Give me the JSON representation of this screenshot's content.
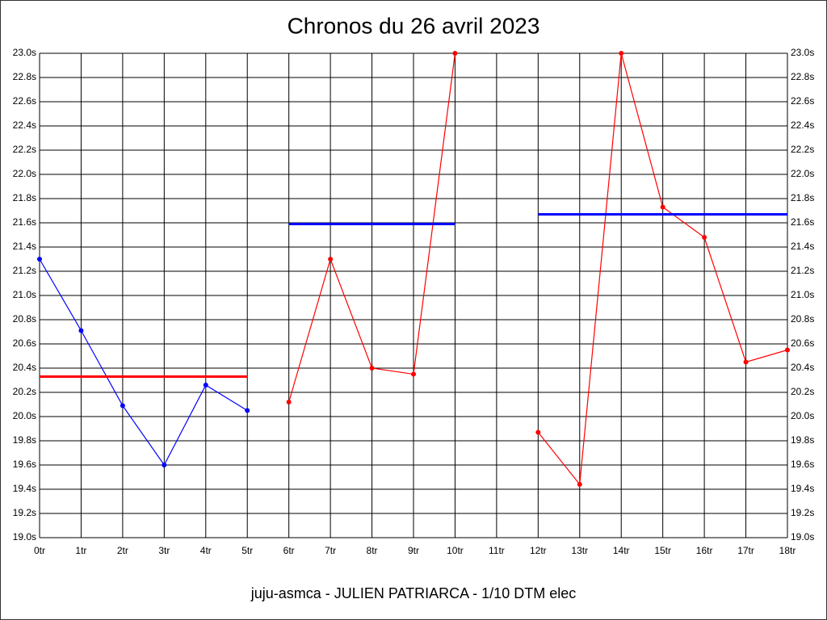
{
  "chart_data": {
    "type": "line",
    "title": "Chronos du 26 avril 2023",
    "subtitle": "juju-asmca - JULIEN PATRIARCA - 1/10 DTM elec",
    "categories": [
      "0tr",
      "1tr",
      "2tr",
      "3tr",
      "4tr",
      "5tr",
      "6tr",
      "7tr",
      "8tr",
      "9tr",
      "10tr",
      "11tr",
      "12tr",
      "13tr",
      "14tr",
      "15tr",
      "16tr",
      "17tr",
      "18tr"
    ],
    "series": [
      {
        "color": "#0000ff",
        "markers": true,
        "line_width": 1.2,
        "values": [
          21.3,
          20.71,
          20.09,
          19.6,
          20.26,
          20.05,
          null,
          null,
          null,
          null,
          null,
          null,
          null,
          null,
          null,
          null,
          null,
          null,
          null
        ]
      },
      {
        "color": "#ff0000",
        "markers": true,
        "line_width": 1.2,
        "values": [
          null,
          null,
          null,
          null,
          null,
          null,
          20.12,
          21.3,
          20.4,
          20.35,
          23.0,
          null,
          19.87,
          19.44,
          23.0,
          21.73,
          21.48,
          20.45,
          20.55
        ]
      },
      {
        "color": "#ff0000",
        "markers": false,
        "line_width": 3,
        "values": [
          20.33,
          20.33,
          20.33,
          20.33,
          20.33,
          20.33,
          null,
          null,
          null,
          null,
          null,
          null,
          null,
          null,
          null,
          null,
          null,
          null,
          null
        ]
      },
      {
        "color": "#0000ff",
        "markers": false,
        "line_width": 3,
        "values": [
          null,
          null,
          null,
          null,
          null,
          null,
          21.59,
          21.59,
          21.59,
          21.59,
          21.59,
          null,
          21.67,
          21.67,
          21.67,
          21.67,
          21.67,
          21.67,
          21.67
        ]
      }
    ],
    "ylim": [
      19.0,
      23.0
    ],
    "yticks": [
      {
        "value": 19.0,
        "label": "19.0s"
      },
      {
        "value": 19.2,
        "label": "19.2s"
      },
      {
        "value": 19.4,
        "label": "19.4s"
      },
      {
        "value": 19.6,
        "label": "19.6s"
      },
      {
        "value": 19.8,
        "label": "19.8s"
      },
      {
        "value": 20.0,
        "label": "20.0s"
      },
      {
        "value": 20.2,
        "label": "20.2s"
      },
      {
        "value": 20.4,
        "label": "20.4s"
      },
      {
        "value": 20.6,
        "label": "20.6s"
      },
      {
        "value": 20.8,
        "label": "20.8s"
      },
      {
        "value": 21.0,
        "label": "21.0s"
      },
      {
        "value": 21.2,
        "label": "21.2s"
      },
      {
        "value": 21.4,
        "label": "21.4s"
      },
      {
        "value": 21.6,
        "label": "21.6s"
      },
      {
        "value": 21.8,
        "label": "21.8s"
      },
      {
        "value": 22.0,
        "label": "22.0s"
      },
      {
        "value": 22.2,
        "label": "22.2s"
      },
      {
        "value": 22.4,
        "label": "22.4s"
      },
      {
        "value": 22.6,
        "label": "22.6s"
      },
      {
        "value": 22.8,
        "label": "22.8s"
      },
      {
        "value": 23.0,
        "label": "23.0s"
      }
    ],
    "grid": true
  }
}
